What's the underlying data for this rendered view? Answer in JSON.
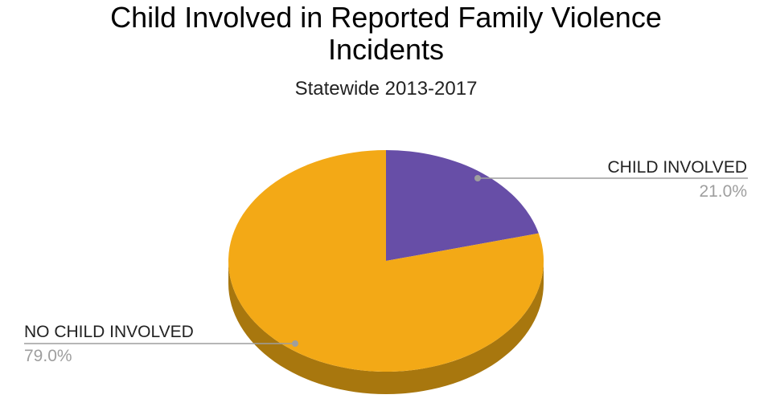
{
  "chart_data": {
    "type": "pie",
    "title": "Child Involved in Reported Family Violence Incidents",
    "title_lines": [
      "Child Involved in Reported Family Violence",
      "Incidents"
    ],
    "subtitle": "Statewide 2013-2017",
    "three_d": true,
    "start_angle_deg": 0,
    "direction": "clockwise",
    "slices": [
      {
        "label": "CHILD INVOLVED",
        "value": 21.0,
        "value_label": "21.0%",
        "color": "#674ea7",
        "side_color": "#4a3578"
      },
      {
        "label": "NO CHILD INVOLVED",
        "value": 79.0,
        "value_label": "79.0%",
        "color": "#f3a916",
        "side_color": "#a8770e"
      }
    ],
    "legend": "none",
    "leader_line_color": "#9e9e9e"
  }
}
